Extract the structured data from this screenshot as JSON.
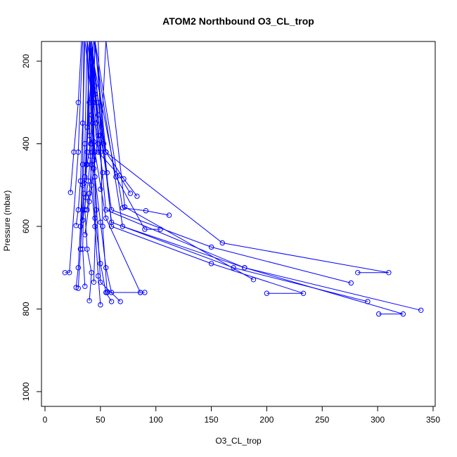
{
  "chart_data": {
    "type": "line",
    "title": "ATOM2 Northbound O3_CL_trop",
    "xlabel": "O3_CL_trop",
    "ylabel": "Pressure (mbar)",
    "xlim": [
      0,
      350
    ],
    "ylim": [
      1000,
      150
    ],
    "y_reversed": true,
    "x_ticks": [
      0,
      50,
      100,
      150,
      200,
      250,
      300,
      350
    ],
    "y_ticks": [
      200,
      400,
      600,
      800,
      1000
    ],
    "grid": false,
    "legend": "none",
    "line_color": "#0000ff",
    "marker": "open-circle",
    "profiles": [
      {
        "x": [
          18,
          22,
          30,
          34
        ],
        "y": [
          712,
          712,
          420,
          150
        ]
      },
      {
        "x": [
          36,
          34,
          35,
          37,
          40,
          44
        ],
        "y": [
          745,
          655,
          520,
          450,
          300,
          150
        ]
      },
      {
        "x": [
          40,
          42,
          38,
          36,
          38,
          40
        ],
        "y": [
          780,
          712,
          655,
          560,
          420,
          150
        ]
      },
      {
        "x": [
          50,
          48,
          45,
          42,
          40,
          38
        ],
        "y": [
          790,
          720,
          600,
          500,
          380,
          150
        ]
      },
      {
        "x": [
          60,
          55,
          50,
          45,
          42,
          40
        ],
        "y": [
          782,
          760,
          690,
          580,
          400,
          150
        ]
      },
      {
        "x": [
          90,
          86,
          55,
          45,
          40
        ],
        "y": [
          760,
          760,
          580,
          420,
          150
        ]
      },
      {
        "x": [
          68,
          50,
          45,
          42
        ],
        "y": [
          782,
          735,
          480,
          150
        ]
      },
      {
        "x": [
          30,
          32,
          34,
          36,
          38
        ],
        "y": [
          750,
          655,
          500,
          400,
          150
        ]
      },
      {
        "x": [
          28,
          30,
          32,
          34,
          36
        ],
        "y": [
          598,
          560,
          490,
          350,
          150
        ]
      },
      {
        "x": [
          23,
          26,
          30,
          33
        ],
        "y": [
          518,
          420,
          300,
          150
        ]
      },
      {
        "x": [
          28,
          30,
          32,
          34,
          35
        ],
        "y": [
          748,
          700,
          600,
          450,
          150
        ]
      },
      {
        "x": [
          32,
          34,
          36,
          38,
          40
        ],
        "y": [
          655,
          560,
          480,
          360,
          150
        ]
      },
      {
        "x": [
          44,
          46,
          44,
          42,
          40
        ],
        "y": [
          735,
          560,
          440,
          330,
          150
        ]
      },
      {
        "x": [
          50,
          52,
          48,
          44,
          42
        ],
        "y": [
          510,
          470,
          400,
          300,
          150
        ]
      },
      {
        "x": [
          55,
          53,
          48,
          42
        ],
        "y": [
          420,
          400,
          300,
          150
        ]
      },
      {
        "x": [
          56,
          50,
          45,
          40
        ],
        "y": [
          470,
          380,
          260,
          150
        ]
      },
      {
        "x": [
          35,
          38,
          41,
          43,
          45
        ],
        "y": [
          495,
          450,
          400,
          350,
          150
        ]
      },
      {
        "x": [
          38,
          40,
          43,
          45
        ],
        "y": [
          560,
          520,
          420,
          150
        ]
      },
      {
        "x": [
          60,
          55,
          50,
          45,
          40
        ],
        "y": [
          760,
          700,
          590,
          480,
          150
        ]
      },
      {
        "x": [
          46,
          48,
          45,
          43,
          40
        ],
        "y": [
          350,
          330,
          280,
          230,
          150
        ]
      },
      {
        "x": [
          42,
          44,
          43,
          41
        ],
        "y": [
          450,
          395,
          300,
          150
        ]
      },
      {
        "x": [
          86,
          56,
          52,
          48
        ],
        "y": [
          760,
          760,
          600,
          150
        ]
      },
      {
        "x": [
          104,
          90,
          64,
          40
        ],
        "y": [
          607,
          607,
          480,
          150
        ]
      },
      {
        "x": [
          112,
          91,
          70,
          45
        ],
        "y": [
          573,
          562,
          555,
          150
        ]
      },
      {
        "x": [
          77,
          67,
          48,
          36
        ],
        "y": [
          520,
          477,
          420,
          150
        ]
      },
      {
        "x": [
          83,
          71,
          55,
          45
        ],
        "y": [
          527,
          485,
          420,
          150
        ]
      },
      {
        "x": [
          188,
          72,
          55
        ],
        "y": [
          729,
          553,
          150
        ]
      },
      {
        "x": [
          200,
          233,
          150,
          60,
          45
        ],
        "y": [
          762,
          762,
          690,
          600,
          150
        ]
      },
      {
        "x": [
          282,
          310,
          160,
          55,
          40
        ],
        "y": [
          712,
          712,
          640,
          420,
          150
        ]
      },
      {
        "x": [
          276,
          150,
          60,
          38
        ],
        "y": [
          737,
          650,
          560,
          150
        ]
      },
      {
        "x": [
          291,
          170,
          60,
          42
        ],
        "y": [
          782,
          700,
          590,
          150
        ]
      },
      {
        "x": [
          339,
          180,
          70,
          44
        ],
        "y": [
          803,
          700,
          600,
          150
        ]
      },
      {
        "x": [
          301,
          323,
          180,
          55,
          40
        ],
        "y": [
          812,
          812,
          700,
          560,
          150
        ]
      },
      {
        "x": [
          40,
          45,
          50,
          55
        ],
        "y": [
          150,
          280,
          420,
          150
        ]
      },
      {
        "x": [
          36,
          40,
          44,
          48,
          42
        ],
        "y": [
          620,
          540,
          460,
          380,
          150
        ]
      },
      {
        "x": [
          34,
          37,
          39,
          41,
          38
        ],
        "y": [
          585,
          530,
          490,
          430,
          150
        ]
      }
    ]
  }
}
